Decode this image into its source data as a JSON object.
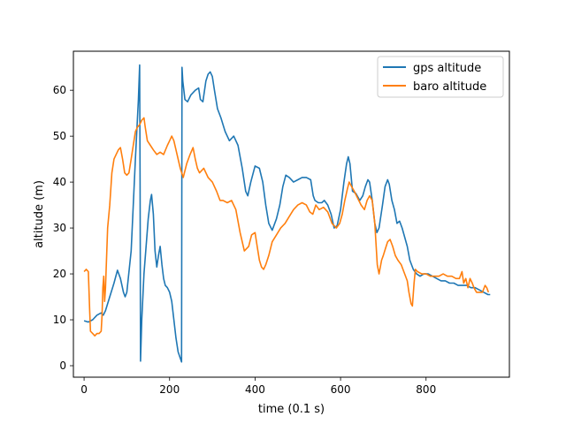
{
  "chart_data": {
    "type": "line",
    "title": "",
    "xlabel": "time (0.1 s)",
    "ylabel": "altitude (m)",
    "xlim": [
      -25,
      995
    ],
    "ylim": [
      -2.5,
      68.5
    ],
    "x_ticks": [
      0,
      200,
      400,
      600,
      800
    ],
    "y_ticks": [
      0,
      10,
      20,
      30,
      40,
      50,
      60
    ],
    "grid": false,
    "legend_position": "top-right",
    "series": [
      {
        "name": "gps altitude",
        "color": "#1f77b4",
        "points": [
          [
            0,
            9.8
          ],
          [
            10,
            9.5
          ],
          [
            20,
            10
          ],
          [
            30,
            11
          ],
          [
            40,
            11.5
          ],
          [
            45,
            11
          ],
          [
            50,
            12
          ],
          [
            60,
            15
          ],
          [
            70,
            18
          ],
          [
            78,
            20.8
          ],
          [
            85,
            19
          ],
          [
            92,
            16
          ],
          [
            96,
            15
          ],
          [
            100,
            16
          ],
          [
            110,
            25
          ],
          [
            120,
            45
          ],
          [
            127,
            58
          ],
          [
            130,
            65.5
          ],
          [
            131,
            40
          ],
          [
            132,
            1
          ],
          [
            135,
            10
          ],
          [
            140,
            20
          ],
          [
            145,
            26
          ],
          [
            150,
            32
          ],
          [
            155,
            36
          ],
          [
            158,
            37.3
          ],
          [
            162,
            33
          ],
          [
            166,
            25
          ],
          [
            170,
            21.5
          ],
          [
            174,
            24
          ],
          [
            178,
            26
          ],
          [
            182,
            22
          ],
          [
            186,
            19
          ],
          [
            190,
            17.5
          ],
          [
            195,
            17
          ],
          [
            200,
            16
          ],
          [
            205,
            14
          ],
          [
            210,
            10
          ],
          [
            215,
            6
          ],
          [
            220,
            3
          ],
          [
            228,
            0.8
          ],
          [
            229,
            65
          ],
          [
            231,
            62
          ],
          [
            236,
            58
          ],
          [
            242,
            57.5
          ],
          [
            250,
            59
          ],
          [
            260,
            60
          ],
          [
            268,
            60.5
          ],
          [
            272,
            58
          ],
          [
            278,
            57.5
          ],
          [
            285,
            62
          ],
          [
            290,
            63.5
          ],
          [
            295,
            64
          ],
          [
            300,
            63
          ],
          [
            305,
            60
          ],
          [
            312,
            56
          ],
          [
            320,
            54
          ],
          [
            330,
            51
          ],
          [
            340,
            49
          ],
          [
            350,
            50
          ],
          [
            360,
            48
          ],
          [
            370,
            43
          ],
          [
            378,
            38
          ],
          [
            383,
            37
          ],
          [
            390,
            40
          ],
          [
            400,
            43.5
          ],
          [
            410,
            43
          ],
          [
            418,
            40
          ],
          [
            425,
            35
          ],
          [
            432,
            31
          ],
          [
            440,
            29.5
          ],
          [
            450,
            32
          ],
          [
            458,
            35
          ],
          [
            465,
            39
          ],
          [
            472,
            41.5
          ],
          [
            480,
            41
          ],
          [
            490,
            40
          ],
          [
            500,
            40.5
          ],
          [
            510,
            41
          ],
          [
            520,
            41
          ],
          [
            530,
            40.5
          ],
          [
            536,
            37
          ],
          [
            540,
            36
          ],
          [
            548,
            35.5
          ],
          [
            556,
            35.5
          ],
          [
            562,
            36
          ],
          [
            570,
            35
          ],
          [
            578,
            33
          ],
          [
            585,
            30
          ],
          [
            592,
            30.5
          ],
          [
            600,
            34
          ],
          [
            608,
            40
          ],
          [
            614,
            44
          ],
          [
            618,
            45.5
          ],
          [
            622,
            44
          ],
          [
            628,
            38
          ],
          [
            636,
            37.5
          ],
          [
            645,
            36
          ],
          [
            652,
            37
          ],
          [
            658,
            39
          ],
          [
            664,
            40.5
          ],
          [
            668,
            40
          ],
          [
            674,
            36
          ],
          [
            680,
            31
          ],
          [
            685,
            29
          ],
          [
            690,
            30
          ],
          [
            698,
            35
          ],
          [
            704,
            39
          ],
          [
            710,
            40.5
          ],
          [
            714,
            39.5
          ],
          [
            720,
            36
          ],
          [
            726,
            34
          ],
          [
            732,
            31
          ],
          [
            738,
            31.5
          ],
          [
            744,
            30
          ],
          [
            750,
            28
          ],
          [
            756,
            26
          ],
          [
            762,
            23
          ],
          [
            770,
            21
          ],
          [
            778,
            20
          ],
          [
            786,
            19.5
          ],
          [
            795,
            20
          ],
          [
            805,
            20
          ],
          [
            815,
            19.5
          ],
          [
            825,
            19
          ],
          [
            835,
            18.5
          ],
          [
            845,
            18.5
          ],
          [
            855,
            18
          ],
          [
            865,
            18
          ],
          [
            875,
            17.5
          ],
          [
            885,
            17.5
          ],
          [
            895,
            17.5
          ],
          [
            905,
            17
          ],
          [
            915,
            17
          ],
          [
            925,
            16.5
          ],
          [
            935,
            16
          ],
          [
            945,
            15.5
          ],
          [
            950,
            15.5
          ]
        ]
      },
      {
        "name": "baro altitude",
        "color": "#ff7f0e",
        "points": [
          [
            0,
            20.5
          ],
          [
            5,
            21
          ],
          [
            10,
            20.5
          ],
          [
            13,
            12
          ],
          [
            15,
            7.5
          ],
          [
            20,
            7
          ],
          [
            25,
            6.5
          ],
          [
            30,
            7
          ],
          [
            35,
            7
          ],
          [
            40,
            7.5
          ],
          [
            42,
            11
          ],
          [
            44,
            17
          ],
          [
            46,
            19.5
          ],
          [
            48,
            14
          ],
          [
            50,
            17
          ],
          [
            55,
            30
          ],
          [
            60,
            35
          ],
          [
            65,
            42
          ],
          [
            70,
            45
          ],
          [
            75,
            46
          ],
          [
            80,
            47
          ],
          [
            85,
            47.5
          ],
          [
            90,
            45
          ],
          [
            95,
            42
          ],
          [
            100,
            41.5
          ],
          [
            105,
            42
          ],
          [
            110,
            45
          ],
          [
            115,
            48
          ],
          [
            120,
            51
          ],
          [
            125,
            52
          ],
          [
            130,
            52.5
          ],
          [
            135,
            53.5
          ],
          [
            140,
            54
          ],
          [
            143,
            52
          ],
          [
            148,
            49
          ],
          [
            155,
            48
          ],
          [
            162,
            47
          ],
          [
            170,
            46
          ],
          [
            178,
            46.5
          ],
          [
            186,
            46
          ],
          [
            195,
            48
          ],
          [
            200,
            49
          ],
          [
            205,
            50
          ],
          [
            210,
            49
          ],
          [
            215,
            47
          ],
          [
            220,
            45
          ],
          [
            225,
            43
          ],
          [
            232,
            41
          ],
          [
            240,
            44
          ],
          [
            248,
            46
          ],
          [
            255,
            47.5
          ],
          [
            260,
            45
          ],
          [
            265,
            43
          ],
          [
            270,
            42
          ],
          [
            280,
            43
          ],
          [
            290,
            41
          ],
          [
            300,
            40
          ],
          [
            310,
            38
          ],
          [
            318,
            36
          ],
          [
            325,
            36
          ],
          [
            335,
            35.5
          ],
          [
            345,
            36
          ],
          [
            355,
            34
          ],
          [
            365,
            29
          ],
          [
            375,
            25
          ],
          [
            385,
            26
          ],
          [
            392,
            28.5
          ],
          [
            400,
            29
          ],
          [
            405,
            26
          ],
          [
            410,
            23
          ],
          [
            415,
            21.5
          ],
          [
            420,
            21
          ],
          [
            425,
            22
          ],
          [
            432,
            24
          ],
          [
            440,
            27
          ],
          [
            450,
            28.5
          ],
          [
            460,
            30
          ],
          [
            470,
            31
          ],
          [
            480,
            32.5
          ],
          [
            490,
            34
          ],
          [
            500,
            35
          ],
          [
            510,
            35.5
          ],
          [
            520,
            35
          ],
          [
            528,
            33.5
          ],
          [
            535,
            33
          ],
          [
            542,
            35
          ],
          [
            550,
            34
          ],
          [
            560,
            34.5
          ],
          [
            570,
            33.5
          ],
          [
            580,
            31
          ],
          [
            590,
            30
          ],
          [
            598,
            31
          ],
          [
            604,
            33
          ],
          [
            610,
            36
          ],
          [
            616,
            38.5
          ],
          [
            620,
            40
          ],
          [
            626,
            39
          ],
          [
            632,
            38
          ],
          [
            640,
            36.5
          ],
          [
            648,
            35
          ],
          [
            656,
            34
          ],
          [
            662,
            36
          ],
          [
            668,
            37
          ],
          [
            674,
            36
          ],
          [
            680,
            31
          ],
          [
            686,
            22
          ],
          [
            690,
            20
          ],
          [
            696,
            23
          ],
          [
            700,
            24
          ],
          [
            705,
            25.5
          ],
          [
            710,
            27
          ],
          [
            716,
            27.5
          ],
          [
            722,
            26
          ],
          [
            728,
            24
          ],
          [
            734,
            23
          ],
          [
            742,
            22
          ],
          [
            750,
            20
          ],
          [
            756,
            18.5
          ],
          [
            760,
            16
          ],
          [
            765,
            13.5
          ],
          [
            768,
            13
          ],
          [
            772,
            18
          ],
          [
            775,
            21
          ],
          [
            780,
            20.5
          ],
          [
            790,
            20
          ],
          [
            800,
            20
          ],
          [
            810,
            19.5
          ],
          [
            820,
            19.5
          ],
          [
            830,
            19.5
          ],
          [
            840,
            20
          ],
          [
            850,
            19.5
          ],
          [
            860,
            19.5
          ],
          [
            870,
            19
          ],
          [
            878,
            19
          ],
          [
            884,
            20.5
          ],
          [
            888,
            18
          ],
          [
            893,
            19
          ],
          [
            898,
            17
          ],
          [
            903,
            19
          ],
          [
            908,
            18
          ],
          [
            912,
            17
          ],
          [
            918,
            16
          ],
          [
            925,
            16
          ],
          [
            932,
            16
          ],
          [
            938,
            17.5
          ],
          [
            942,
            17
          ],
          [
            946,
            16
          ]
        ]
      }
    ]
  }
}
